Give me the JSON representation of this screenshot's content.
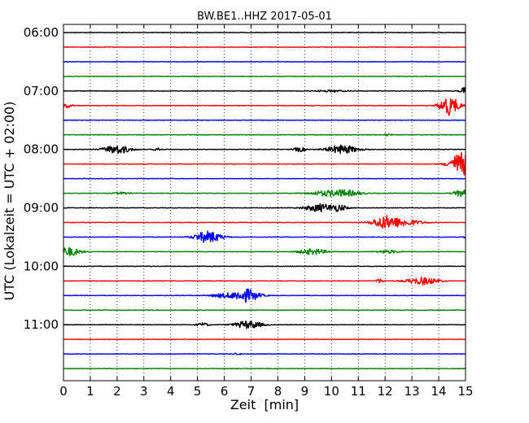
{
  "chart_data": {
    "type": "line",
    "title": "BW.BE1..HHZ 2017-05-01",
    "xlabel": "Zeit  [min]",
    "ylabel": "UTC (Lokalzeit = UTC + 02:00)",
    "xlim": [
      0,
      15
    ],
    "x_ticks": [
      "0",
      "1",
      "2",
      "3",
      "4",
      "5",
      "6",
      "7",
      "8",
      "9",
      "10",
      "11",
      "12",
      "13",
      "14",
      "15"
    ],
    "y_ticks": [
      "06:00",
      "07:00",
      "08:00",
      "09:00",
      "10:00",
      "11:00"
    ],
    "grid": "x-dotted",
    "row_minutes": 15,
    "colors": [
      "#000000",
      "#ff0000",
      "#0000ff",
      "#008000"
    ],
    "rows": [
      {
        "start": "06:00",
        "events": []
      },
      {
        "start": "06:15",
        "events": []
      },
      {
        "start": "06:30",
        "events": []
      },
      {
        "start": "06:45",
        "events": []
      },
      {
        "start": "07:00",
        "events": [
          {
            "t": 10.0,
            "amp": 0.12,
            "w": 0.4
          },
          {
            "t": 14.95,
            "amp": 0.5,
            "w": 0.1
          }
        ]
      },
      {
        "start": "07:15",
        "events": [
          {
            "t": 0.1,
            "amp": 0.3,
            "w": 0.15
          },
          {
            "t": 14.4,
            "amp": 1.3,
            "w": 0.25
          }
        ]
      },
      {
        "start": "07:30",
        "events": []
      },
      {
        "start": "07:45",
        "events": [
          {
            "t": 12.1,
            "amp": 0.15,
            "w": 0.1
          }
        ]
      },
      {
        "start": "08:00",
        "events": [
          {
            "t": 2.0,
            "amp": 0.6,
            "w": 0.35
          },
          {
            "t": 3.5,
            "amp": 0.2,
            "w": 0.1
          },
          {
            "t": 8.8,
            "amp": 0.3,
            "w": 0.15
          },
          {
            "t": 10.4,
            "amp": 0.6,
            "w": 0.4
          }
        ]
      },
      {
        "start": "08:15",
        "events": [
          {
            "t": 14.85,
            "amp": 1.6,
            "w": 0.3
          }
        ]
      },
      {
        "start": "08:30",
        "events": []
      },
      {
        "start": "08:45",
        "events": [
          {
            "t": 2.2,
            "amp": 0.15,
            "w": 0.2
          },
          {
            "t": 9.9,
            "amp": 0.35,
            "w": 0.5
          },
          {
            "t": 10.6,
            "amp": 0.3,
            "w": 0.4
          },
          {
            "t": 14.85,
            "amp": 0.45,
            "w": 0.2
          }
        ]
      },
      {
        "start": "09:00",
        "events": [
          {
            "t": 9.6,
            "amp": 0.55,
            "w": 0.4
          },
          {
            "t": 10.3,
            "amp": 0.35,
            "w": 0.2
          }
        ]
      },
      {
        "start": "09:15",
        "events": [
          {
            "t": 11.95,
            "amp": 0.7,
            "w": 0.3
          },
          {
            "t": 12.6,
            "amp": 0.5,
            "w": 0.5
          }
        ]
      },
      {
        "start": "09:30",
        "events": [
          {
            "t": 5.4,
            "amp": 0.8,
            "w": 0.35
          },
          {
            "t": 15.0,
            "amp": 0.2,
            "w": 0.05
          }
        ]
      },
      {
        "start": "09:45",
        "events": [
          {
            "t": 0.2,
            "amp": 0.6,
            "w": 0.3
          },
          {
            "t": 9.3,
            "amp": 0.4,
            "w": 0.35
          },
          {
            "t": 12.1,
            "amp": 0.2,
            "w": 0.3
          }
        ]
      },
      {
        "start": "10:00",
        "events": []
      },
      {
        "start": "10:15",
        "events": [
          {
            "t": 11.8,
            "amp": 0.3,
            "w": 0.1
          },
          {
            "t": 13.4,
            "amp": 0.5,
            "w": 0.4
          }
        ]
      },
      {
        "start": "10:30",
        "events": [
          {
            "t": 5.9,
            "amp": 0.25,
            "w": 0.3
          },
          {
            "t": 6.8,
            "amp": 0.9,
            "w": 0.35
          }
        ]
      },
      {
        "start": "10:45",
        "events": []
      },
      {
        "start": "11:00",
        "events": [
          {
            "t": 5.2,
            "amp": 0.25,
            "w": 0.15
          },
          {
            "t": 6.9,
            "amp": 0.55,
            "w": 0.35
          }
        ]
      },
      {
        "start": "11:15",
        "events": []
      },
      {
        "start": "11:30",
        "events": [
          {
            "t": 6.5,
            "amp": 0.1,
            "w": 0.1
          }
        ]
      },
      {
        "start": "11:45",
        "events": []
      }
    ]
  }
}
